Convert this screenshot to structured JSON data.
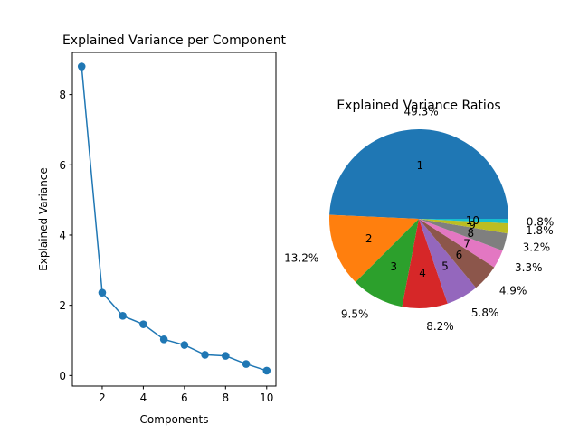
{
  "chart_data": [
    {
      "type": "line",
      "title": "Explained Variance per Component",
      "xlabel": "Components",
      "ylabel": "Explained Variance",
      "x": [
        1,
        2,
        3,
        4,
        5,
        6,
        7,
        8,
        9,
        10
      ],
      "series": [
        {
          "values": [
            8.8,
            2.36,
            1.7,
            1.46,
            1.03,
            0.87,
            0.59,
            0.56,
            0.33,
            0.14
          ],
          "color": "#1f77b4"
        }
      ],
      "xlim": [
        0.55,
        10.45
      ],
      "ylim": [
        -0.3,
        9.2
      ],
      "xticks": [
        2,
        4,
        6,
        8,
        10
      ],
      "yticks": [
        0,
        2,
        4,
        6,
        8
      ],
      "marker": "circle",
      "grid": false
    },
    {
      "type": "pie",
      "title": "Explained Variance Ratios",
      "labels": [
        "1",
        "2",
        "3",
        "4",
        "5",
        "6",
        "7",
        "8",
        "9",
        "10"
      ],
      "values": [
        49.3,
        13.2,
        9.5,
        8.2,
        5.8,
        4.9,
        3.3,
        3.2,
        1.8,
        0.8
      ],
      "pct_labels": [
        "49.3%",
        "13.2%",
        "9.5%",
        "8.2%",
        "5.8%",
        "4.9%",
        "3.3%",
        "3.2%",
        "1.8%",
        "0.8%"
      ],
      "colors": [
        "#1f77b4",
        "#ff7f0e",
        "#2ca02c",
        "#d62728",
        "#9467bd",
        "#8c564b",
        "#e377c2",
        "#7f7f7f",
        "#bcbd22",
        "#17becf"
      ],
      "start_angle": 0,
      "direction": "counterclockwise"
    }
  ]
}
